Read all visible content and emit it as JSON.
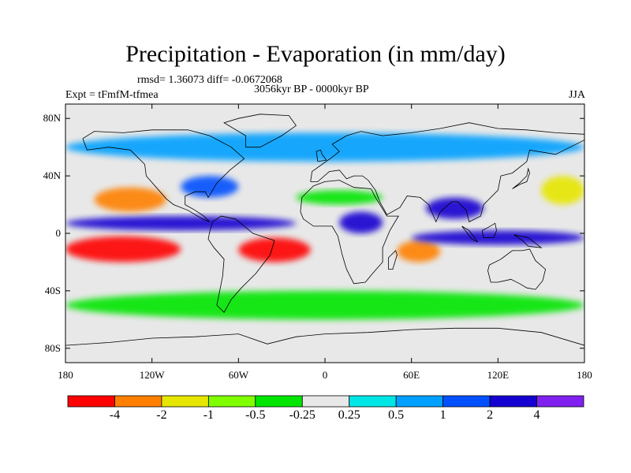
{
  "figure": {
    "title": "Precipitation - Evaporation (in mm/day)",
    "stats_text": "rmsd= 1.36073 diff= -0.0672068",
    "period_text": "3056kyr BP - 0000kyr BP",
    "experiment_text": "Expt = tFmfM-tfmea",
    "season_text": "JJA"
  },
  "map": {
    "projection": "cylindrical-equidistant",
    "lon_range": [
      -180,
      180
    ],
    "lat_range": [
      -90,
      90
    ],
    "lat_ticks": [
      {
        "value": 80,
        "label": "80N"
      },
      {
        "value": 40,
        "label": "40N"
      },
      {
        "value": 0,
        "label": "0"
      },
      {
        "value": -40,
        "label": "40S"
      },
      {
        "value": -80,
        "label": "80S"
      }
    ],
    "lon_ticks": [
      {
        "value": -180,
        "label": "180"
      },
      {
        "value": -120,
        "label": "120W"
      },
      {
        "value": -60,
        "label": "60W"
      },
      {
        "value": 0,
        "label": "0"
      },
      {
        "value": 60,
        "label": "60E"
      },
      {
        "value": 120,
        "label": "120E"
      },
      {
        "value": 180,
        "label": "180"
      }
    ],
    "background_color": "#e8e8e8",
    "coastline_color": "#000000"
  },
  "colorbar": {
    "colors": [
      "#ff0000",
      "#ff8000",
      "#e6e600",
      "#80ff00",
      "#00e600",
      "#e8e8e8",
      "#00e6e6",
      "#00a0ff",
      "#0050ff",
      "#1400d0",
      "#8020f0"
    ],
    "labels": [
      "-4",
      "-2",
      "-1",
      "-0.5",
      "-0.25",
      "0.25",
      "0.5",
      "1",
      "2",
      "4"
    ]
  },
  "chart_data": {
    "type": "heatmap",
    "variable": "Precipitation - Evaporation",
    "units": "mm/day",
    "levels": [
      -4,
      -2,
      -1,
      -0.5,
      -0.25,
      0.25,
      0.5,
      1,
      2,
      4
    ],
    "regions": [
      {
        "lon": [
          -180,
          -20
        ],
        "lat": [
          2,
          12
        ],
        "value": 3
      },
      {
        "lon": [
          -180,
          -100
        ],
        "lat": [
          -20,
          -2
        ],
        "value": -5
      },
      {
        "lon": [
          -60,
          -10
        ],
        "lat": [
          -20,
          -3
        ],
        "value": -5
      },
      {
        "lon": [
          -160,
          -110
        ],
        "lat": [
          15,
          32
        ],
        "value": -3
      },
      {
        "lon": [
          -100,
          -60
        ],
        "lat": [
          25,
          40
        ],
        "value": 1.5
      },
      {
        "lon": [
          50,
          80
        ],
        "lat": [
          -20,
          -5
        ],
        "value": -3
      },
      {
        "lon": [
          60,
          180
        ],
        "lat": [
          -8,
          2
        ],
        "value": 3
      },
      {
        "lon": [
          70,
          110
        ],
        "lat": [
          10,
          25
        ],
        "value": 3
      },
      {
        "lon": [
          10,
          40
        ],
        "lat": [
          0,
          15
        ],
        "value": 2
      },
      {
        "lon": [
          -20,
          40
        ],
        "lat": [
          20,
          30
        ],
        "value": -0.5
      },
      {
        "lon": [
          150,
          180
        ],
        "lat": [
          20,
          40
        ],
        "value": -1.5
      },
      {
        "lon": [
          -180,
          180
        ],
        "lat": [
          -60,
          -40
        ],
        "value": -0.5
      },
      {
        "lon": [
          -180,
          180
        ],
        "lat": [
          50,
          70
        ],
        "value": 0.5
      }
    ]
  }
}
